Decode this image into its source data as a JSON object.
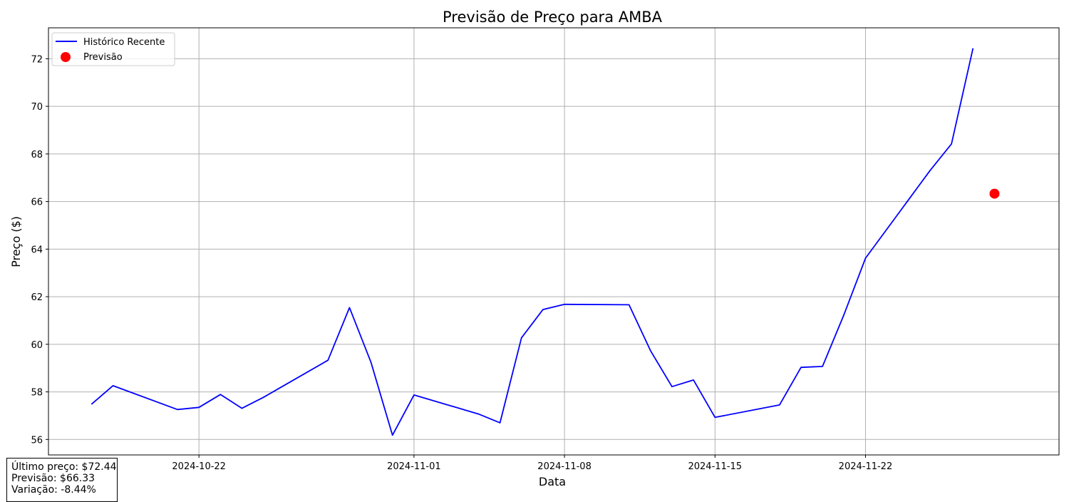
{
  "chart_data": {
    "type": "line",
    "title": "Previsão de Preço para AMBA",
    "xlabel": "Data",
    "ylabel": "Preço ($)",
    "xlim": [
      "2024-10-15",
      "2024-12-01"
    ],
    "ylim": [
      55.35,
      73.3
    ],
    "x_ticks": [
      "2024-10-22",
      "2024-11-01",
      "2024-11-08",
      "2024-11-15",
      "2024-11-22"
    ],
    "y_ticks": [
      56,
      58,
      60,
      62,
      64,
      66,
      68,
      70,
      72
    ],
    "grid": true,
    "legend": {
      "placement": "top-left",
      "entries": [
        "Histórico Recente",
        "Previsão"
      ]
    },
    "series": [
      {
        "name": "Histórico Recente",
        "kind": "line",
        "color": "#0000ff",
        "points": [
          {
            "x": "2024-10-17",
            "y": 57.48
          },
          {
            "x": "2024-10-18",
            "y": 58.26
          },
          {
            "x": "2024-10-21",
            "y": 57.26
          },
          {
            "x": "2024-10-22",
            "y": 57.35
          },
          {
            "x": "2024-10-23",
            "y": 57.89
          },
          {
            "x": "2024-10-24",
            "y": 57.31
          },
          {
            "x": "2024-10-25",
            "y": 57.77
          },
          {
            "x": "2024-10-28",
            "y": 59.33
          },
          {
            "x": "2024-10-29",
            "y": 61.54
          },
          {
            "x": "2024-10-30",
            "y": 59.24
          },
          {
            "x": "2024-10-31",
            "y": 56.18
          },
          {
            "x": "2024-11-01",
            "y": 57.87
          },
          {
            "x": "2024-11-04",
            "y": 57.07
          },
          {
            "x": "2024-11-05",
            "y": 56.7
          },
          {
            "x": "2024-11-06",
            "y": 60.27
          },
          {
            "x": "2024-11-07",
            "y": 61.46
          },
          {
            "x": "2024-11-08",
            "y": 61.68
          },
          {
            "x": "2024-11-11",
            "y": 61.66
          },
          {
            "x": "2024-11-12",
            "y": 59.73
          },
          {
            "x": "2024-11-13",
            "y": 58.22
          },
          {
            "x": "2024-11-14",
            "y": 58.5
          },
          {
            "x": "2024-11-15",
            "y": 56.93
          },
          {
            "x": "2024-11-18",
            "y": 57.45
          },
          {
            "x": "2024-11-19",
            "y": 59.03
          },
          {
            "x": "2024-11-20",
            "y": 59.07
          },
          {
            "x": "2024-11-21",
            "y": 61.25
          },
          {
            "x": "2024-11-22",
            "y": 63.62
          },
          {
            "x": "2024-11-25",
            "y": 67.3
          },
          {
            "x": "2024-11-26",
            "y": 68.42
          },
          {
            "x": "2024-11-27",
            "y": 72.44
          }
        ]
      },
      {
        "name": "Previsão",
        "kind": "scatter",
        "color": "#ff0000",
        "points": [
          {
            "x": "2024-11-28",
            "y": 66.33
          }
        ]
      }
    ]
  },
  "info_box": {
    "last_price": "Último preço: $72.44",
    "forecast": "Previsão: $66.33",
    "change": "Variação: -8.44%"
  }
}
